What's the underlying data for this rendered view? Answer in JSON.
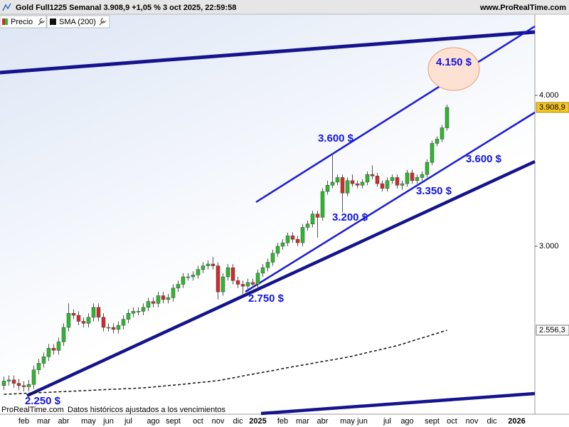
{
  "chart_data": {
    "type": "candlestick",
    "title": "Gold Full1225 Semanal 3.908,9 +1,05 % 3 oct 2025, 22:59:58",
    "website": "www.ProRealTime.com",
    "source": "ProRealTime.com",
    "note": "Datos históricos ajustados a los vencimientos",
    "log_scale": true,
    "grid": false,
    "ylim": [
      2178,
      4669
    ],
    "yticks": [
      {
        "value": 4000,
        "label": "4.000"
      },
      {
        "value": 3000,
        "label": "3.000"
      }
    ],
    "categories": [
      null,
      null,
      null,
      null,
      "feb",
      null,
      null,
      null,
      "mar",
      null,
      null,
      null,
      "abr",
      null,
      null,
      null,
      null,
      "may",
      null,
      null,
      null,
      "jun",
      null,
      null,
      null,
      "jul",
      null,
      null,
      null,
      null,
      "ago",
      null,
      null,
      null,
      "sept",
      null,
      null,
      null,
      null,
      "oct",
      null,
      null,
      null,
      "nov",
      null,
      null,
      null,
      "dic",
      null,
      null,
      null,
      "2025",
      null,
      null,
      null,
      null,
      "feb",
      null,
      null,
      null,
      "mar",
      null,
      null,
      null,
      "abr",
      null,
      null,
      null,
      null,
      "may",
      null,
      null,
      "jun",
      null,
      null,
      null,
      null,
      "jul",
      null,
      null,
      null,
      "ago",
      null,
      null,
      null,
      null,
      "sept",
      null,
      null,
      null,
      "oct",
      null,
      null,
      null,
      "nov",
      null,
      null,
      null,
      "dic",
      null,
      null,
      null,
      null,
      "2026",
      null,
      null,
      null
    ],
    "series": [
      {
        "name": "Precio",
        "up_color": "#2db82d",
        "down_color": "#d42a2a",
        "open": [
          2300,
          2320,
          2325,
          2310,
          2300,
          2295,
          2305,
          2370,
          2400,
          2430,
          2470,
          2460,
          2500,
          2570,
          2640,
          2630,
          2600,
          2590,
          2620,
          2670,
          2620,
          2570,
          2570,
          2560,
          2580,
          2610,
          2640,
          2650,
          2650,
          2670,
          2700,
          2690,
          2730,
          2710,
          2720,
          2770,
          2790,
          2830,
          2830,
          2840,
          2870,
          2890,
          2900,
          2890,
          2750,
          2830,
          2880,
          2810,
          2790,
          2780,
          2800,
          2790,
          2850,
          2880,
          2910,
          2960,
          3000,
          3020,
          3060,
          3040,
          3020,
          3110,
          3130,
          3190,
          3170,
          3330,
          3370,
          3390,
          3420,
          3320,
          3400,
          3380,
          3370,
          3390,
          3440,
          3430,
          3380,
          3350,
          3400,
          3420,
          3370,
          3380,
          3450,
          3400,
          3420,
          3440,
          3520,
          3650,
          3680,
          3760,
          null,
          null,
          null,
          null,
          null,
          null,
          null,
          null,
          null,
          null,
          null,
          null,
          null,
          null,
          null,
          null,
          null
        ],
        "high": [
          2340,
          2345,
          2345,
          2330,
          2320,
          2325,
          2390,
          2420,
          2450,
          2490,
          2490,
          2520,
          2590,
          2690,
          2660,
          2650,
          2620,
          2640,
          2690,
          2690,
          2640,
          2590,
          2590,
          2600,
          2630,
          2660,
          2670,
          2670,
          2690,
          2720,
          2720,
          2750,
          2750,
          2740,
          2790,
          2810,
          2850,
          2850,
          2860,
          2890,
          2910,
          2920,
          2940,
          2910,
          2850,
          2900,
          2900,
          2830,
          2810,
          2820,
          2820,
          2870,
          2900,
          2930,
          2980,
          3020,
          3040,
          3080,
          3080,
          3060,
          3130,
          3150,
          3210,
          3210,
          3350,
          3400,
          3580,
          3440,
          3440,
          3420,
          3440,
          3400,
          3410,
          3460,
          3500,
          3450,
          3400,
          3420,
          3440,
          3440,
          3400,
          3470,
          3470,
          3440,
          3460,
          3540,
          3670,
          3700,
          3780,
          3930,
          null,
          null,
          null,
          null,
          null,
          null,
          null,
          null,
          null,
          null,
          null,
          null,
          null,
          null,
          null,
          null,
          null
        ],
        "low": [
          2280,
          2300,
          2290,
          2280,
          2275,
          2275,
          2285,
          2350,
          2380,
          2410,
          2440,
          2440,
          2480,
          2550,
          2610,
          2580,
          2570,
          2570,
          2600,
          2600,
          2550,
          2550,
          2540,
          2540,
          2560,
          2590,
          2620,
          2630,
          2630,
          2650,
          2670,
          2670,
          2690,
          2690,
          2700,
          2750,
          2770,
          2810,
          2810,
          2820,
          2850,
          2870,
          2870,
          2710,
          2730,
          2810,
          2790,
          2770,
          2740,
          2760,
          2770,
          2770,
          2830,
          2860,
          2890,
          2940,
          2980,
          3000,
          3020,
          3000,
          3000,
          3090,
          3110,
          3050,
          3150,
          3310,
          3350,
          3370,
          3200,
          3300,
          3360,
          3350,
          3350,
          3370,
          3410,
          3360,
          3330,
          3330,
          3380,
          3350,
          3340,
          3360,
          3380,
          3380,
          3400,
          3420,
          3500,
          3630,
          3660,
          3740,
          null,
          null,
          null,
          null,
          null,
          null,
          null,
          null,
          null,
          null,
          null,
          null,
          null,
          null,
          null,
          null,
          null
        ],
        "close": [
          2320,
          2325,
          2310,
          2300,
          2295,
          2305,
          2370,
          2400,
          2430,
          2470,
          2460,
          2500,
          2570,
          2640,
          2630,
          2600,
          2590,
          2620,
          2670,
          2620,
          2570,
          2570,
          2560,
          2580,
          2610,
          2640,
          2650,
          2650,
          2670,
          2700,
          2690,
          2730,
          2710,
          2720,
          2770,
          2790,
          2830,
          2830,
          2840,
          2870,
          2890,
          2900,
          2890,
          2750,
          2830,
          2880,
          2810,
          2790,
          2780,
          2800,
          2790,
          2850,
          2880,
          2910,
          2960,
          3000,
          3020,
          3060,
          3040,
          3020,
          3110,
          3130,
          3190,
          3170,
          3330,
          3370,
          3390,
          3420,
          3320,
          3400,
          3380,
          3370,
          3390,
          3440,
          3430,
          3380,
          3350,
          3400,
          3420,
          3370,
          3380,
          3450,
          3400,
          3420,
          3440,
          3520,
          3650,
          3680,
          3760,
          3908.9,
          null,
          null,
          null,
          null,
          null,
          null,
          null,
          null,
          null,
          null,
          null,
          null,
          null,
          null,
          null,
          null,
          null
        ],
        "last": {
          "value": 3908.9,
          "label": "3.908,9"
        }
      },
      {
        "name": "SMA (200)",
        "color": "#111111",
        "dashed": true,
        "values": [
          2262,
          2263,
          2264,
          2265,
          2266,
          2267,
          2268,
          2269,
          2270,
          2271,
          2272,
          2273,
          2274,
          2275,
          2276,
          2277,
          2278,
          2279,
          2280,
          2281,
          2282,
          2283,
          2284,
          2285,
          2286,
          2287,
          2288,
          2289,
          2290,
          2292,
          2294,
          2296,
          2298,
          2300,
          2302,
          2304,
          2306,
          2308,
          2311,
          2313,
          2315,
          2317,
          2320,
          2322,
          2326,
          2330,
          2334,
          2338,
          2343,
          2347,
          2351,
          2355,
          2359,
          2363,
          2367,
          2371,
          2376,
          2380,
          2384,
          2388,
          2392,
          2396,
          2400,
          2404,
          2408,
          2412,
          2416,
          2420,
          2424,
          2428,
          2433,
          2439,
          2444,
          2450,
          2455,
          2460,
          2466,
          2471,
          2477,
          2482,
          2489,
          2497,
          2504,
          2512,
          2519,
          2526,
          2534,
          2541,
          2549,
          2556.3,
          null,
          null,
          null,
          null,
          null,
          null,
          null,
          null,
          null,
          null,
          null,
          null,
          null,
          null,
          null,
          null,
          null
        ],
        "last": {
          "value": 2556.3,
          "label": "2.556,3"
        }
      }
    ],
    "annotations": [
      "4.150 $",
      "3.600 $",
      "3.600 $",
      "3.350 $",
      "3.200 $",
      "2.750 $",
      "2.250 $"
    ]
  }
}
